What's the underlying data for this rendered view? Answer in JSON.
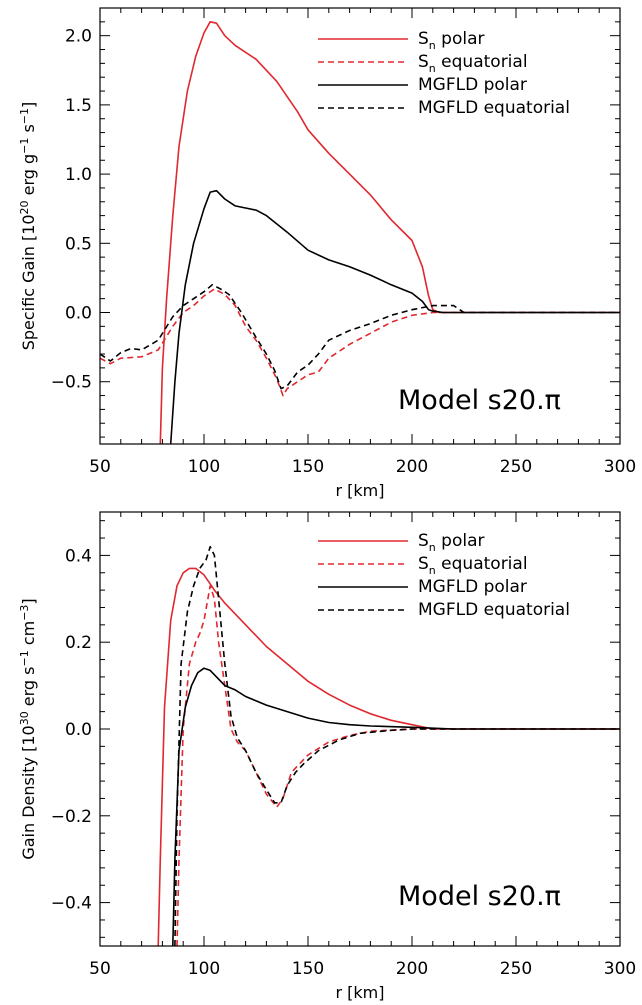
{
  "chart_data": [
    {
      "type": "line",
      "xlabel": "r [km]",
      "ylabel": {
        "text": "Specific Gain [10",
        "sup1": "20",
        "mid": " erg g",
        "sup2": "−1",
        "mid2": " s",
        "sup3": "−1",
        "end": "]"
      },
      "xlim": [
        50,
        300
      ],
      "ylim": [
        -0.95,
        2.2
      ],
      "xticks": [
        "50",
        "100",
        "150",
        "200",
        "250",
        "300"
      ],
      "yticks": [
        {
          "value": -0.5,
          "label": "−0.5"
        },
        {
          "value": 0.0,
          "label": "0.0"
        },
        {
          "value": 0.5,
          "label": "0.5"
        },
        {
          "value": 1.0,
          "label": "1.0"
        },
        {
          "value": 1.5,
          "label": "1.5"
        },
        {
          "value": 2.0,
          "label": "2.0"
        }
      ],
      "annotation": "Model s20.π",
      "legend_position": "top-right",
      "series": [
        {
          "name": "S_n polar",
          "legend_main": "S",
          "legend_sub": "n",
          "legend_rest": " polar",
          "color": "#e0282e",
          "dash": "solid",
          "points": [
            [
              79,
              -0.95
            ],
            [
              80,
              -0.4
            ],
            [
              82,
              0.1
            ],
            [
              85,
              0.7
            ],
            [
              88,
              1.2
            ],
            [
              92,
              1.6
            ],
            [
              96,
              1.85
            ],
            [
              100,
              2.02
            ],
            [
              103,
              2.1
            ],
            [
              106,
              2.09
            ],
            [
              110,
              2.0
            ],
            [
              115,
              1.93
            ],
            [
              125,
              1.83
            ],
            [
              135,
              1.67
            ],
            [
              145,
              1.45
            ],
            [
              150,
              1.32
            ],
            [
              160,
              1.15
            ],
            [
              170,
              1.0
            ],
            [
              180,
              0.85
            ],
            [
              190,
              0.67
            ],
            [
              200,
              0.52
            ],
            [
              205,
              0.33
            ],
            [
              208,
              0.12
            ],
            [
              210,
              0.02
            ],
            [
              213,
              0.0
            ],
            [
              220,
              0.0
            ],
            [
              300,
              0.0
            ]
          ]
        },
        {
          "name": "S_n equatorial",
          "legend_main": "S",
          "legend_sub": "n",
          "legend_rest": " equatorial",
          "color": "#e0282e",
          "dash": "dashed",
          "points": [
            [
              50,
              -0.33
            ],
            [
              55,
              -0.37
            ],
            [
              60,
              -0.33
            ],
            [
              70,
              -0.32
            ],
            [
              78,
              -0.27
            ],
            [
              85,
              -0.1
            ],
            [
              90,
              0.0
            ],
            [
              95,
              0.05
            ],
            [
              100,
              0.12
            ],
            [
              105,
              0.17
            ],
            [
              110,
              0.13
            ],
            [
              115,
              0.05
            ],
            [
              120,
              -0.1
            ],
            [
              125,
              -0.2
            ],
            [
              130,
              -0.33
            ],
            [
              135,
              -0.48
            ],
            [
              138,
              -0.6
            ],
            [
              140,
              -0.55
            ],
            [
              145,
              -0.5
            ],
            [
              150,
              -0.45
            ],
            [
              155,
              -0.43
            ],
            [
              160,
              -0.33
            ],
            [
              170,
              -0.23
            ],
            [
              180,
              -0.15
            ],
            [
              190,
              -0.07
            ],
            [
              200,
              -0.02
            ],
            [
              210,
              0.0
            ],
            [
              220,
              0.0
            ],
            [
              300,
              0.0
            ]
          ]
        },
        {
          "name": "MGFLD polar",
          "legend_main": "MGFLD",
          "legend_sub": "",
          "legend_rest": " polar",
          "color": "#000000",
          "dash": "solid",
          "points": [
            [
              84,
              -0.95
            ],
            [
              86,
              -0.5
            ],
            [
              88,
              -0.15
            ],
            [
              91,
              0.2
            ],
            [
              95,
              0.5
            ],
            [
              100,
              0.75
            ],
            [
              103,
              0.87
            ],
            [
              106,
              0.88
            ],
            [
              110,
              0.82
            ],
            [
              115,
              0.77
            ],
            [
              125,
              0.74
            ],
            [
              130,
              0.7
            ],
            [
              140,
              0.58
            ],
            [
              150,
              0.45
            ],
            [
              160,
              0.38
            ],
            [
              170,
              0.33
            ],
            [
              180,
              0.27
            ],
            [
              190,
              0.2
            ],
            [
              200,
              0.14
            ],
            [
              205,
              0.08
            ],
            [
              208,
              0.02
            ],
            [
              210,
              0.01
            ],
            [
              215,
              0.0
            ],
            [
              300,
              0.0
            ]
          ]
        },
        {
          "name": "MGFLD equatorial",
          "legend_main": "MGFLD",
          "legend_sub": "",
          "legend_rest": " equatorial",
          "color": "#000000",
          "dash": "dashed",
          "points": [
            [
              50,
              -0.3
            ],
            [
              55,
              -0.35
            ],
            [
              60,
              -0.29
            ],
            [
              65,
              -0.26
            ],
            [
              70,
              -0.27
            ],
            [
              78,
              -0.2
            ],
            [
              85,
              -0.03
            ],
            [
              90,
              0.05
            ],
            [
              95,
              0.1
            ],
            [
              100,
              0.15
            ],
            [
              104,
              0.2
            ],
            [
              108,
              0.17
            ],
            [
              112,
              0.13
            ],
            [
              118,
              0.0
            ],
            [
              125,
              -0.18
            ],
            [
              130,
              -0.3
            ],
            [
              134,
              -0.42
            ],
            [
              137,
              -0.55
            ],
            [
              140,
              -0.53
            ],
            [
              145,
              -0.43
            ],
            [
              150,
              -0.38
            ],
            [
              155,
              -0.3
            ],
            [
              160,
              -0.2
            ],
            [
              170,
              -0.13
            ],
            [
              180,
              -0.08
            ],
            [
              190,
              -0.02
            ],
            [
              200,
              0.02
            ],
            [
              210,
              0.05
            ],
            [
              220,
              0.05
            ],
            [
              225,
              0.0
            ],
            [
              300,
              0.0
            ]
          ]
        }
      ]
    },
    {
      "type": "line",
      "xlabel": "r [km]",
      "ylabel": {
        "text": "Gain Density [10",
        "sup1": "30",
        "mid": " erg s",
        "sup2": "−1",
        "mid2": " cm",
        "sup3": "−3",
        "end": "]"
      },
      "xlim": [
        50,
        300
      ],
      "ylim": [
        -0.5,
        0.5
      ],
      "xticks": [
        "50",
        "100",
        "150",
        "200",
        "250",
        "300"
      ],
      "yticks": [
        {
          "value": -0.4,
          "label": "−0.4"
        },
        {
          "value": -0.2,
          "label": "−0.2"
        },
        {
          "value": 0.0,
          "label": "0.0"
        },
        {
          "value": 0.2,
          "label": "0.2"
        },
        {
          "value": 0.4,
          "label": "0.4"
        }
      ],
      "annotation": "Model s20.π",
      "legend_position": "top-right",
      "series": [
        {
          "name": "S_n polar",
          "legend_main": "S",
          "legend_sub": "n",
          "legend_rest": " polar",
          "color": "#e0282e",
          "dash": "solid",
          "points": [
            [
              78,
              -0.5
            ],
            [
              79,
              -0.3
            ],
            [
              81,
              0.05
            ],
            [
              84,
              0.25
            ],
            [
              87,
              0.33
            ],
            [
              90,
              0.36
            ],
            [
              93,
              0.37
            ],
            [
              96,
              0.37
            ],
            [
              100,
              0.355
            ],
            [
              105,
              0.32
            ],
            [
              110,
              0.29
            ],
            [
              120,
              0.24
            ],
            [
              130,
              0.19
            ],
            [
              140,
              0.15
            ],
            [
              150,
              0.11
            ],
            [
              160,
              0.08
            ],
            [
              170,
              0.055
            ],
            [
              180,
              0.035
            ],
            [
              190,
              0.02
            ],
            [
              200,
              0.01
            ],
            [
              210,
              0.0
            ],
            [
              300,
              0.0
            ]
          ]
        },
        {
          "name": "S_n equatorial",
          "legend_main": "S",
          "legend_sub": "n",
          "legend_rest": " equatorial",
          "color": "#e0282e",
          "dash": "dashed",
          "points": [
            [
              87,
              -0.5
            ],
            [
              88,
              -0.3
            ],
            [
              90,
              0.0
            ],
            [
              93,
              0.15
            ],
            [
              96,
              0.2
            ],
            [
              98,
              0.22
            ],
            [
              100,
              0.25
            ],
            [
              103,
              0.33
            ],
            [
              105,
              0.3
            ],
            [
              107,
              0.2
            ],
            [
              110,
              0.1
            ],
            [
              113,
              0.0
            ],
            [
              116,
              -0.03
            ],
            [
              120,
              -0.05
            ],
            [
              125,
              -0.1
            ],
            [
              130,
              -0.15
            ],
            [
              135,
              -0.18
            ],
            [
              138,
              -0.16
            ],
            [
              142,
              -0.1
            ],
            [
              146,
              -0.08
            ],
            [
              150,
              -0.06
            ],
            [
              160,
              -0.03
            ],
            [
              170,
              -0.015
            ],
            [
              180,
              -0.005
            ],
            [
              200,
              0.0
            ],
            [
              300,
              0.0
            ]
          ]
        },
        {
          "name": "MGFLD polar",
          "legend_main": "MGFLD",
          "legend_sub": "",
          "legend_rest": " polar",
          "color": "#000000",
          "dash": "solid",
          "points": [
            [
              85,
              -0.5
            ],
            [
              86,
              -0.3
            ],
            [
              88,
              -0.05
            ],
            [
              91,
              0.05
            ],
            [
              94,
              0.1
            ],
            [
              97,
              0.13
            ],
            [
              100,
              0.14
            ],
            [
              103,
              0.135
            ],
            [
              106,
              0.12
            ],
            [
              110,
              0.1
            ],
            [
              115,
              0.09
            ],
            [
              120,
              0.075
            ],
            [
              130,
              0.055
            ],
            [
              140,
              0.04
            ],
            [
              150,
              0.025
            ],
            [
              160,
              0.015
            ],
            [
              170,
              0.01
            ],
            [
              180,
              0.007
            ],
            [
              200,
              0.004
            ],
            [
              220,
              0.0
            ],
            [
              300,
              0.0
            ]
          ]
        },
        {
          "name": "MGFLD equatorial",
          "legend_main": "MGFLD",
          "legend_sub": "",
          "legend_rest": " equatorial",
          "color": "#000000",
          "dash": "dashed",
          "points": [
            [
              86,
              -0.5
            ],
            [
              87,
              -0.2
            ],
            [
              89,
              0.15
            ],
            [
              92,
              0.27
            ],
            [
              95,
              0.33
            ],
            [
              98,
              0.37
            ],
            [
              101,
              0.39
            ],
            [
              103,
              0.42
            ],
            [
              105,
              0.4
            ],
            [
              107,
              0.3
            ],
            [
              110,
              0.15
            ],
            [
              113,
              0.03
            ],
            [
              116,
              -0.02
            ],
            [
              120,
              -0.05
            ],
            [
              125,
              -0.1
            ],
            [
              130,
              -0.14
            ],
            [
              134,
              -0.17
            ],
            [
              137,
              -0.17
            ],
            [
              140,
              -0.13
            ],
            [
              144,
              -0.1
            ],
            [
              148,
              -0.08
            ],
            [
              155,
              -0.05
            ],
            [
              165,
              -0.025
            ],
            [
              175,
              -0.01
            ],
            [
              190,
              -0.003
            ],
            [
              200,
              0.0
            ],
            [
              300,
              0.0
            ]
          ]
        }
      ]
    }
  ]
}
